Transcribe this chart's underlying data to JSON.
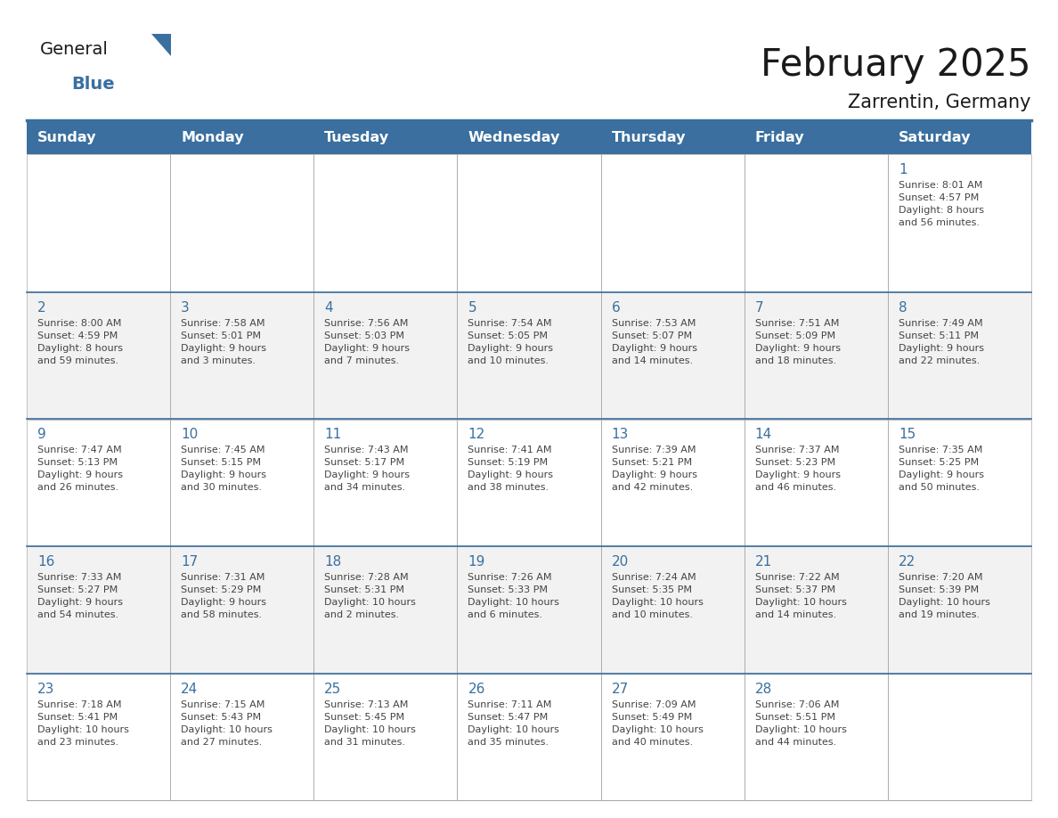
{
  "title": "February 2025",
  "subtitle": "Zarrentin, Germany",
  "header_bg": "#3a6f9f",
  "header_text_color": "#ffffff",
  "cell_bg_white": "#ffffff",
  "cell_bg_gray": "#f2f2f2",
  "day_number_color": "#3a6f9f",
  "text_color": "#444444",
  "border_color": "#aaaaaa",
  "row_divider_color": "#3a6f9f",
  "days_of_week": [
    "Sunday",
    "Monday",
    "Tuesday",
    "Wednesday",
    "Thursday",
    "Friday",
    "Saturday"
  ],
  "calendar_data": [
    [
      {
        "day": "",
        "info": ""
      },
      {
        "day": "",
        "info": ""
      },
      {
        "day": "",
        "info": ""
      },
      {
        "day": "",
        "info": ""
      },
      {
        "day": "",
        "info": ""
      },
      {
        "day": "",
        "info": ""
      },
      {
        "day": "1",
        "info": "Sunrise: 8:01 AM\nSunset: 4:57 PM\nDaylight: 8 hours\nand 56 minutes."
      }
    ],
    [
      {
        "day": "2",
        "info": "Sunrise: 8:00 AM\nSunset: 4:59 PM\nDaylight: 8 hours\nand 59 minutes."
      },
      {
        "day": "3",
        "info": "Sunrise: 7:58 AM\nSunset: 5:01 PM\nDaylight: 9 hours\nand 3 minutes."
      },
      {
        "day": "4",
        "info": "Sunrise: 7:56 AM\nSunset: 5:03 PM\nDaylight: 9 hours\nand 7 minutes."
      },
      {
        "day": "5",
        "info": "Sunrise: 7:54 AM\nSunset: 5:05 PM\nDaylight: 9 hours\nand 10 minutes."
      },
      {
        "day": "6",
        "info": "Sunrise: 7:53 AM\nSunset: 5:07 PM\nDaylight: 9 hours\nand 14 minutes."
      },
      {
        "day": "7",
        "info": "Sunrise: 7:51 AM\nSunset: 5:09 PM\nDaylight: 9 hours\nand 18 minutes."
      },
      {
        "day": "8",
        "info": "Sunrise: 7:49 AM\nSunset: 5:11 PM\nDaylight: 9 hours\nand 22 minutes."
      }
    ],
    [
      {
        "day": "9",
        "info": "Sunrise: 7:47 AM\nSunset: 5:13 PM\nDaylight: 9 hours\nand 26 minutes."
      },
      {
        "day": "10",
        "info": "Sunrise: 7:45 AM\nSunset: 5:15 PM\nDaylight: 9 hours\nand 30 minutes."
      },
      {
        "day": "11",
        "info": "Sunrise: 7:43 AM\nSunset: 5:17 PM\nDaylight: 9 hours\nand 34 minutes."
      },
      {
        "day": "12",
        "info": "Sunrise: 7:41 AM\nSunset: 5:19 PM\nDaylight: 9 hours\nand 38 minutes."
      },
      {
        "day": "13",
        "info": "Sunrise: 7:39 AM\nSunset: 5:21 PM\nDaylight: 9 hours\nand 42 minutes."
      },
      {
        "day": "14",
        "info": "Sunrise: 7:37 AM\nSunset: 5:23 PM\nDaylight: 9 hours\nand 46 minutes."
      },
      {
        "day": "15",
        "info": "Sunrise: 7:35 AM\nSunset: 5:25 PM\nDaylight: 9 hours\nand 50 minutes."
      }
    ],
    [
      {
        "day": "16",
        "info": "Sunrise: 7:33 AM\nSunset: 5:27 PM\nDaylight: 9 hours\nand 54 minutes."
      },
      {
        "day": "17",
        "info": "Sunrise: 7:31 AM\nSunset: 5:29 PM\nDaylight: 9 hours\nand 58 minutes."
      },
      {
        "day": "18",
        "info": "Sunrise: 7:28 AM\nSunset: 5:31 PM\nDaylight: 10 hours\nand 2 minutes."
      },
      {
        "day": "19",
        "info": "Sunrise: 7:26 AM\nSunset: 5:33 PM\nDaylight: 10 hours\nand 6 minutes."
      },
      {
        "day": "20",
        "info": "Sunrise: 7:24 AM\nSunset: 5:35 PM\nDaylight: 10 hours\nand 10 minutes."
      },
      {
        "day": "21",
        "info": "Sunrise: 7:22 AM\nSunset: 5:37 PM\nDaylight: 10 hours\nand 14 minutes."
      },
      {
        "day": "22",
        "info": "Sunrise: 7:20 AM\nSunset: 5:39 PM\nDaylight: 10 hours\nand 19 minutes."
      }
    ],
    [
      {
        "day": "23",
        "info": "Sunrise: 7:18 AM\nSunset: 5:41 PM\nDaylight: 10 hours\nand 23 minutes."
      },
      {
        "day": "24",
        "info": "Sunrise: 7:15 AM\nSunset: 5:43 PM\nDaylight: 10 hours\nand 27 minutes."
      },
      {
        "day": "25",
        "info": "Sunrise: 7:13 AM\nSunset: 5:45 PM\nDaylight: 10 hours\nand 31 minutes."
      },
      {
        "day": "26",
        "info": "Sunrise: 7:11 AM\nSunset: 5:47 PM\nDaylight: 10 hours\nand 35 minutes."
      },
      {
        "day": "27",
        "info": "Sunrise: 7:09 AM\nSunset: 5:49 PM\nDaylight: 10 hours\nand 40 minutes."
      },
      {
        "day": "28",
        "info": "Sunrise: 7:06 AM\nSunset: 5:51 PM\nDaylight: 10 hours\nand 44 minutes."
      },
      {
        "day": "",
        "info": ""
      }
    ]
  ],
  "logo_general_color": "#1a1a1a",
  "logo_blue_color": "#3a6f9f",
  "logo_triangle_color": "#3a6f9f",
  "title_color": "#1a1a1a",
  "subtitle_color": "#1a1a1a"
}
